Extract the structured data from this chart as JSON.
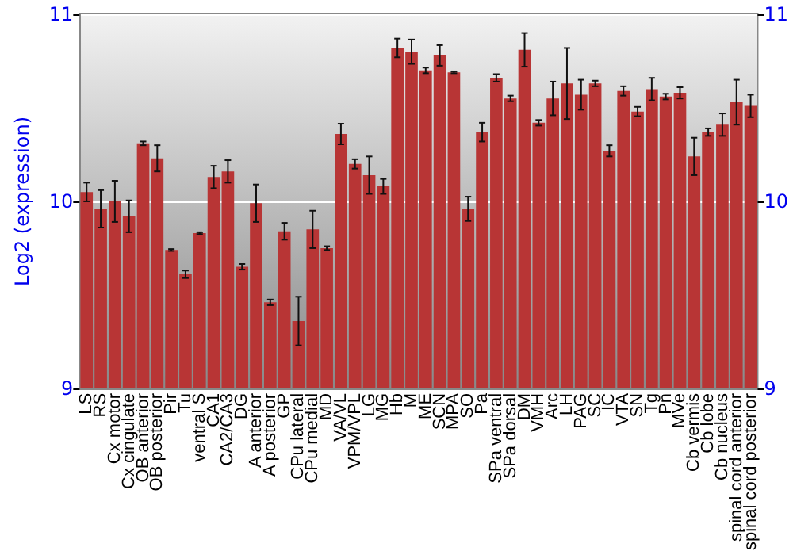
{
  "chart_data": {
    "type": "bar",
    "ylabel": "Log2 (expression)",
    "categories": [
      "LS",
      "RS",
      "Cx motor",
      "Cx cingulate",
      "OB anterior",
      "OB posterior",
      "Pir",
      "Tu",
      "ventral S",
      "CA1",
      "CA2/CA3",
      "DG",
      "A anterior",
      "A posterior",
      "GP",
      "CPu lateral",
      "CPu medial",
      "MD",
      "VA/VL",
      "VPM/VPL",
      "LG",
      "MG",
      "Hb",
      "M",
      "ME",
      "SCN",
      "MPA",
      "SO",
      "Pa",
      "SPa ventral",
      "SPa dorsal",
      "DM",
      "VMH",
      "Arc",
      "LH",
      "PAG",
      "SC",
      "IC",
      "VTA",
      "SN",
      "Tg",
      "Pn",
      "MVe",
      "Cb vermis",
      "Cb lobe",
      "Cb nucleus",
      "spinal cord anterior",
      "spinal cord posterior"
    ],
    "values": [
      10.05,
      9.96,
      10.0,
      9.92,
      10.31,
      10.23,
      9.74,
      9.61,
      9.83,
      10.13,
      10.16,
      9.65,
      9.99,
      9.46,
      9.84,
      9.36,
      9.85,
      9.75,
      10.36,
      10.2,
      10.14,
      10.08,
      10.82,
      10.8,
      10.7,
      10.78,
      10.69,
      9.96,
      10.37,
      10.66,
      10.55,
      10.81,
      10.42,
      10.55,
      10.63,
      10.57,
      10.63,
      10.27,
      10.59,
      10.48,
      10.6,
      10.56,
      10.58,
      10.24,
      10.37,
      10.41,
      10.53,
      10.51
    ],
    "errors": [
      0.05,
      0.1,
      0.11,
      0.085,
      0.01,
      0.07,
      0.005,
      0.02,
      0.005,
      0.06,
      0.06,
      0.015,
      0.1,
      0.015,
      0.045,
      0.13,
      0.1,
      0.01,
      0.055,
      0.025,
      0.1,
      0.04,
      0.05,
      0.065,
      0.015,
      0.055,
      0.005,
      0.065,
      0.05,
      0.02,
      0.015,
      0.09,
      0.015,
      0.09,
      0.19,
      0.08,
      0.015,
      0.03,
      0.025,
      0.025,
      0.06,
      0.015,
      0.03,
      0.1,
      0.02,
      0.06,
      0.12,
      0.06
    ],
    "color": "#b83535",
    "ylim": [
      9,
      11
    ],
    "yticks": [
      9,
      10,
      11
    ],
    "y2lim": [
      9,
      11
    ],
    "y2ticks": [
      9,
      10,
      11
    ],
    "grid": "y"
  }
}
